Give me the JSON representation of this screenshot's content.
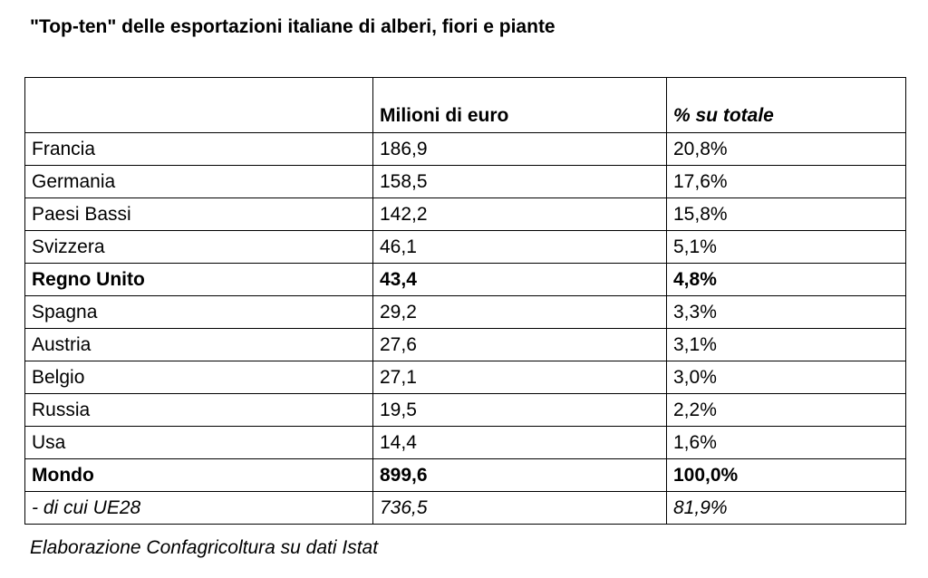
{
  "title": "\"Top-ten\" delle esportazioni italiane di alberi, fiori e piante",
  "table": {
    "header": [
      "",
      "Milioni di euro",
      "% su totale"
    ],
    "rows": [
      [
        "Francia",
        "186,9",
        "20,8%"
      ],
      [
        "Germania",
        "158,5",
        "17,6%"
      ],
      [
        "Paesi Bassi",
        "142,2",
        "15,8%"
      ],
      [
        "Svizzera",
        "46,1",
        "5,1%"
      ],
      [
        "Regno Unito",
        "43,4",
        "4,8%"
      ],
      [
        "Spagna",
        "29,2",
        "3,3%"
      ],
      [
        "Austria",
        "27,6",
        "3,1%"
      ],
      [
        "Belgio",
        "27,1",
        "3,0%"
      ],
      [
        "Russia",
        "19,5",
        "2,2%"
      ],
      [
        "Usa",
        "14,4",
        "1,6%"
      ],
      [
        "Mondo",
        "899,6",
        "100,0%"
      ],
      [
        "- di cui UE28",
        "736,5",
        "81,9%"
      ]
    ]
  },
  "source": "Elaborazione Confagricoltura su dati Istat"
}
